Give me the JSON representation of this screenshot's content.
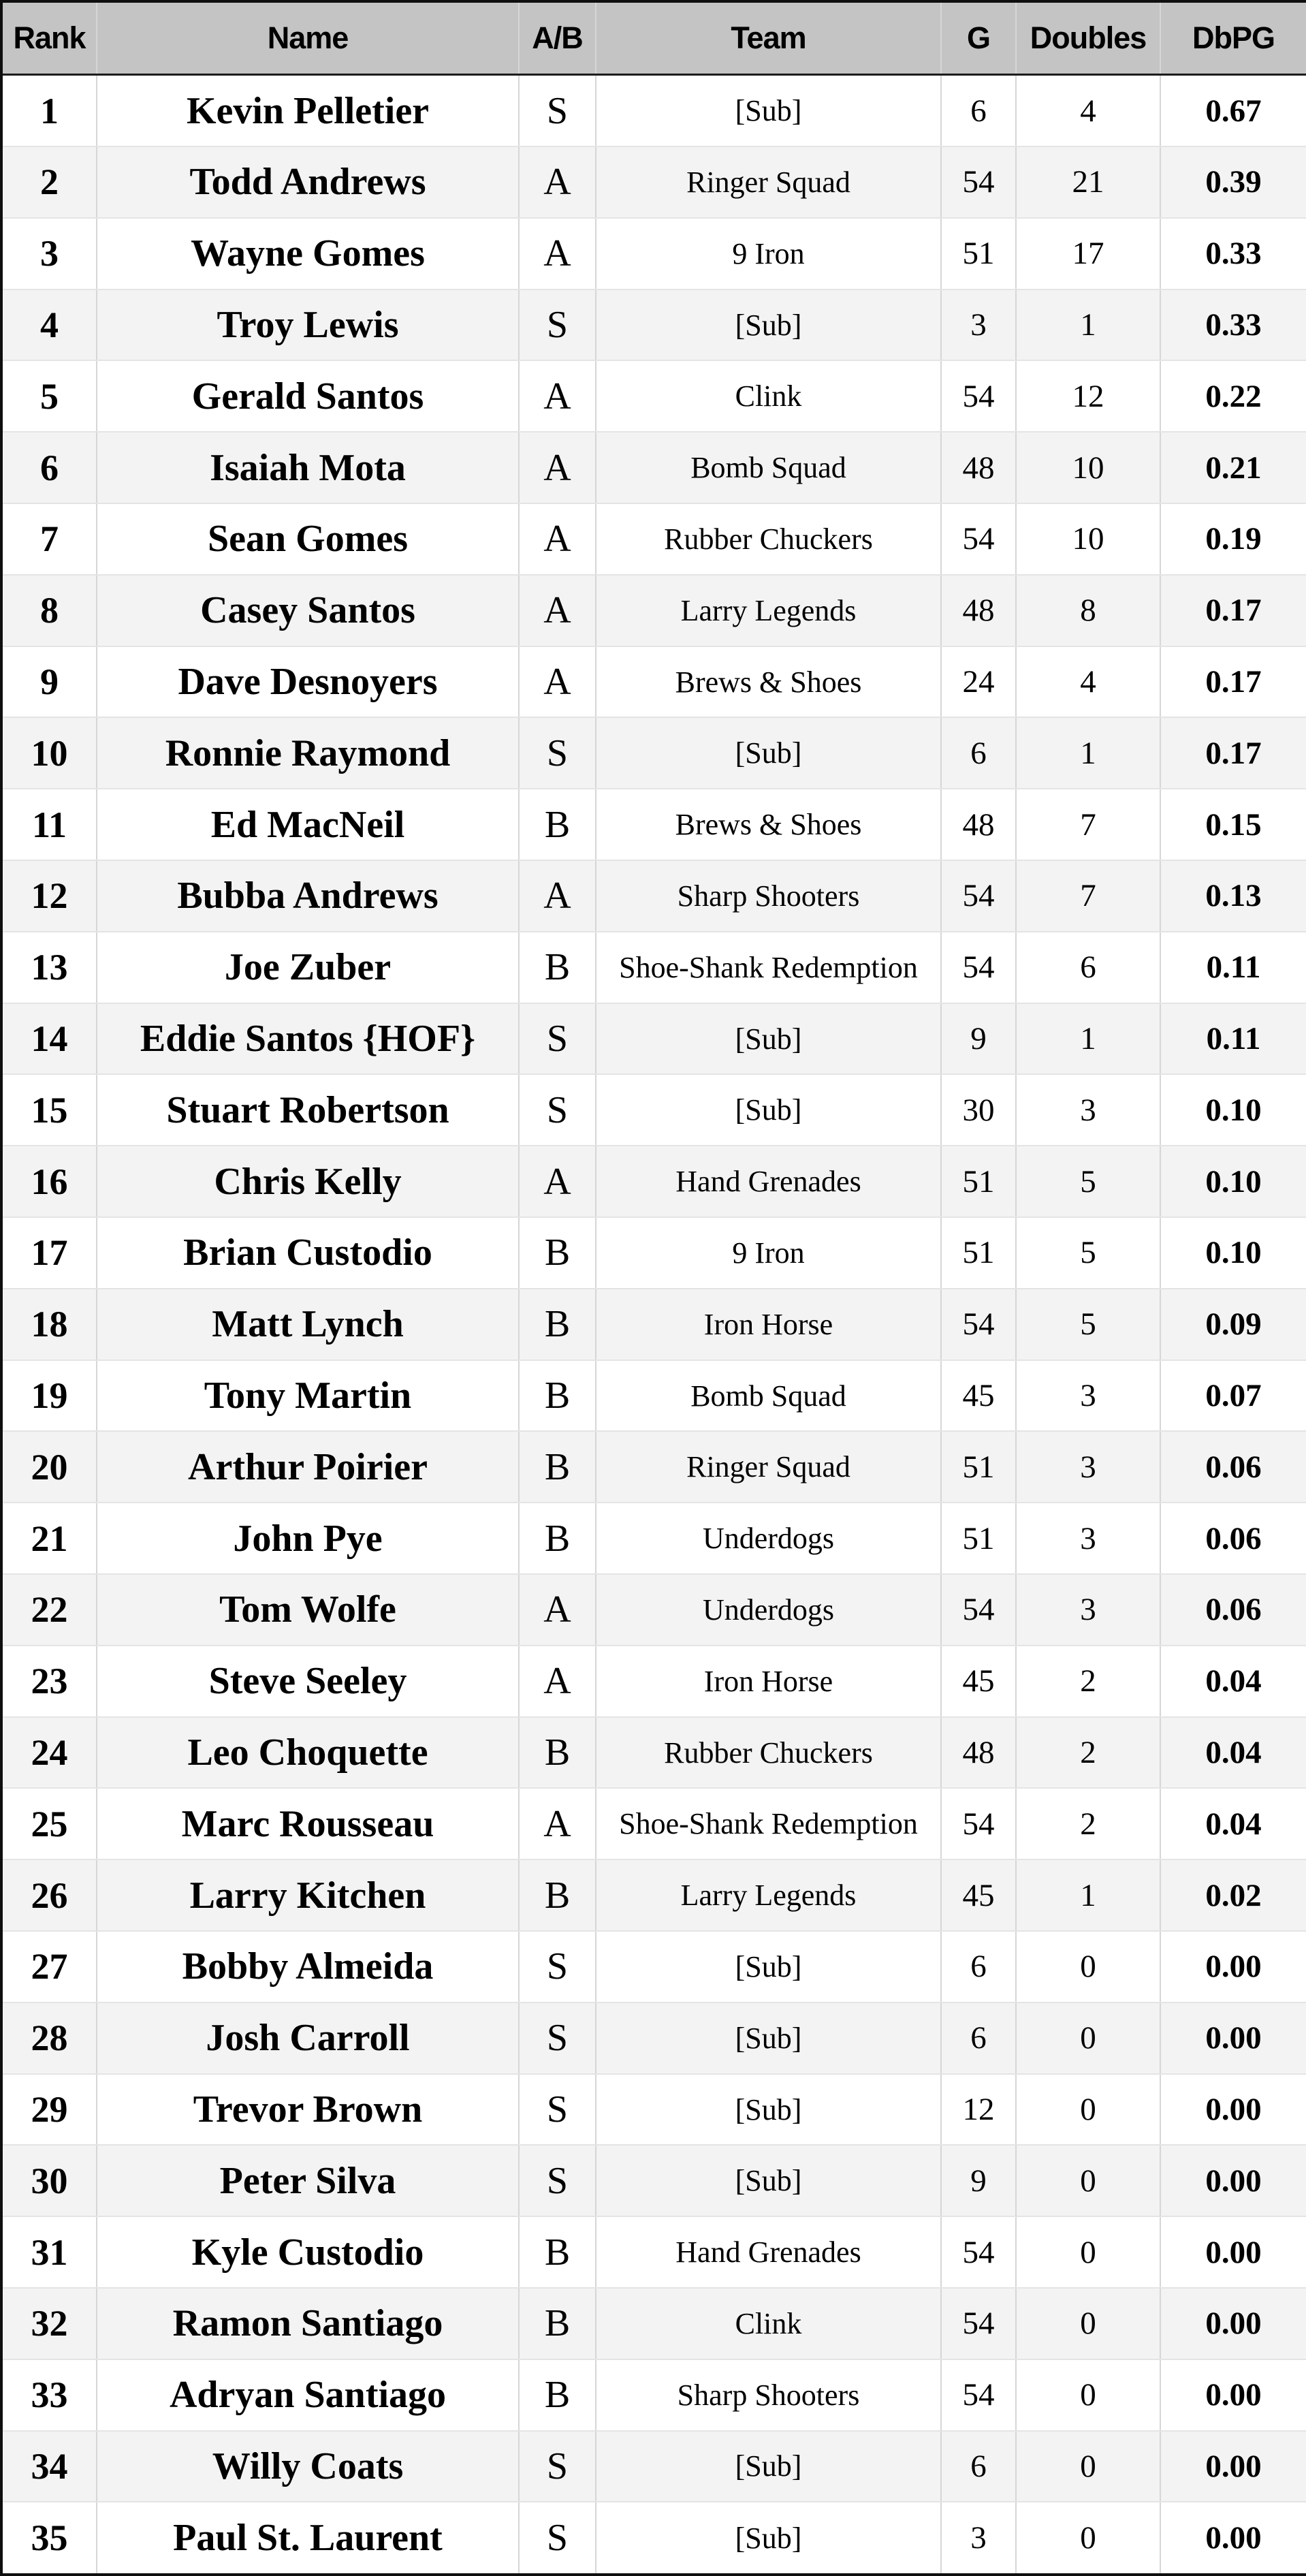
{
  "table": {
    "columns": [
      {
        "key": "rank",
        "label": "Rank"
      },
      {
        "key": "name",
        "label": "Name"
      },
      {
        "key": "ab",
        "label": "A/B"
      },
      {
        "key": "team",
        "label": "Team"
      },
      {
        "key": "g",
        "label": "G"
      },
      {
        "key": "doubles",
        "label": "Doubles"
      },
      {
        "key": "dbpg",
        "label": "DbPG"
      }
    ],
    "rows": [
      {
        "rank": "1",
        "name": "Kevin Pelletier",
        "ab": "S",
        "team": "[Sub]",
        "g": "6",
        "doubles": "4",
        "dbpg": "0.67"
      },
      {
        "rank": "2",
        "name": "Todd Andrews",
        "ab": "A",
        "team": "Ringer Squad",
        "g": "54",
        "doubles": "21",
        "dbpg": "0.39"
      },
      {
        "rank": "3",
        "name": "Wayne Gomes",
        "ab": "A",
        "team": "9 Iron",
        "g": "51",
        "doubles": "17",
        "dbpg": "0.33"
      },
      {
        "rank": "4",
        "name": "Troy Lewis",
        "ab": "S",
        "team": "[Sub]",
        "g": "3",
        "doubles": "1",
        "dbpg": "0.33"
      },
      {
        "rank": "5",
        "name": "Gerald Santos",
        "ab": "A",
        "team": "Clink",
        "g": "54",
        "doubles": "12",
        "dbpg": "0.22"
      },
      {
        "rank": "6",
        "name": "Isaiah Mota",
        "ab": "A",
        "team": "Bomb Squad",
        "g": "48",
        "doubles": "10",
        "dbpg": "0.21"
      },
      {
        "rank": "7",
        "name": "Sean Gomes",
        "ab": "A",
        "team": "Rubber Chuckers",
        "g": "54",
        "doubles": "10",
        "dbpg": "0.19"
      },
      {
        "rank": "8",
        "name": "Casey Santos",
        "ab": "A",
        "team": "Larry Legends",
        "g": "48",
        "doubles": "8",
        "dbpg": "0.17"
      },
      {
        "rank": "9",
        "name": "Dave Desnoyers",
        "ab": "A",
        "team": "Brews & Shoes",
        "g": "24",
        "doubles": "4",
        "dbpg": "0.17"
      },
      {
        "rank": "10",
        "name": "Ronnie Raymond",
        "ab": "S",
        "team": "[Sub]",
        "g": "6",
        "doubles": "1",
        "dbpg": "0.17"
      },
      {
        "rank": "11",
        "name": "Ed MacNeil",
        "ab": "B",
        "team": "Brews & Shoes",
        "g": "48",
        "doubles": "7",
        "dbpg": "0.15"
      },
      {
        "rank": "12",
        "name": "Bubba Andrews",
        "ab": "A",
        "team": "Sharp Shooters",
        "g": "54",
        "doubles": "7",
        "dbpg": "0.13"
      },
      {
        "rank": "13",
        "name": "Joe Zuber",
        "ab": "B",
        "team": "Shoe-Shank Redemption",
        "g": "54",
        "doubles": "6",
        "dbpg": "0.11"
      },
      {
        "rank": "14",
        "name": "Eddie Santos {HOF}",
        "ab": "S",
        "team": "[Sub]",
        "g": "9",
        "doubles": "1",
        "dbpg": "0.11"
      },
      {
        "rank": "15",
        "name": "Stuart Robertson",
        "ab": "S",
        "team": "[Sub]",
        "g": "30",
        "doubles": "3",
        "dbpg": "0.10"
      },
      {
        "rank": "16",
        "name": "Chris Kelly",
        "ab": "A",
        "team": "Hand Grenades",
        "g": "51",
        "doubles": "5",
        "dbpg": "0.10"
      },
      {
        "rank": "17",
        "name": "Brian Custodio",
        "ab": "B",
        "team": "9 Iron",
        "g": "51",
        "doubles": "5",
        "dbpg": "0.10"
      },
      {
        "rank": "18",
        "name": "Matt Lynch",
        "ab": "B",
        "team": "Iron Horse",
        "g": "54",
        "doubles": "5",
        "dbpg": "0.09"
      },
      {
        "rank": "19",
        "name": "Tony Martin",
        "ab": "B",
        "team": "Bomb Squad",
        "g": "45",
        "doubles": "3",
        "dbpg": "0.07"
      },
      {
        "rank": "20",
        "name": "Arthur Poirier",
        "ab": "B",
        "team": "Ringer Squad",
        "g": "51",
        "doubles": "3",
        "dbpg": "0.06"
      },
      {
        "rank": "21",
        "name": "John Pye",
        "ab": "B",
        "team": "Underdogs",
        "g": "51",
        "doubles": "3",
        "dbpg": "0.06"
      },
      {
        "rank": "22",
        "name": "Tom Wolfe",
        "ab": "A",
        "team": "Underdogs",
        "g": "54",
        "doubles": "3",
        "dbpg": "0.06"
      },
      {
        "rank": "23",
        "name": "Steve Seeley",
        "ab": "A",
        "team": "Iron Horse",
        "g": "45",
        "doubles": "2",
        "dbpg": "0.04"
      },
      {
        "rank": "24",
        "name": "Leo Choquette",
        "ab": "B",
        "team": "Rubber Chuckers",
        "g": "48",
        "doubles": "2",
        "dbpg": "0.04"
      },
      {
        "rank": "25",
        "name": "Marc Rousseau",
        "ab": "A",
        "team": "Shoe-Shank Redemption",
        "g": "54",
        "doubles": "2",
        "dbpg": "0.04"
      },
      {
        "rank": "26",
        "name": "Larry Kitchen",
        "ab": "B",
        "team": "Larry Legends",
        "g": "45",
        "doubles": "1",
        "dbpg": "0.02"
      },
      {
        "rank": "27",
        "name": "Bobby Almeida",
        "ab": "S",
        "team": "[Sub]",
        "g": "6",
        "doubles": "0",
        "dbpg": "0.00"
      },
      {
        "rank": "28",
        "name": "Josh Carroll",
        "ab": "S",
        "team": "[Sub]",
        "g": "6",
        "doubles": "0",
        "dbpg": "0.00"
      },
      {
        "rank": "29",
        "name": "Trevor Brown",
        "ab": "S",
        "team": "[Sub]",
        "g": "12",
        "doubles": "0",
        "dbpg": "0.00"
      },
      {
        "rank": "30",
        "name": "Peter Silva",
        "ab": "S",
        "team": "[Sub]",
        "g": "9",
        "doubles": "0",
        "dbpg": "0.00"
      },
      {
        "rank": "31",
        "name": "Kyle Custodio",
        "ab": "B",
        "team": "Hand Grenades",
        "g": "54",
        "doubles": "0",
        "dbpg": "0.00"
      },
      {
        "rank": "32",
        "name": "Ramon Santiago",
        "ab": "B",
        "team": "Clink",
        "g": "54",
        "doubles": "0",
        "dbpg": "0.00"
      },
      {
        "rank": "33",
        "name": "Adryan Santiago",
        "ab": "B",
        "team": "Sharp Shooters",
        "g": "54",
        "doubles": "0",
        "dbpg": "0.00"
      },
      {
        "rank": "34",
        "name": "Willy Coats",
        "ab": "S",
        "team": "[Sub]",
        "g": "6",
        "doubles": "0",
        "dbpg": "0.00"
      },
      {
        "rank": "35",
        "name": "Paul St. Laurent",
        "ab": "S",
        "team": "[Sub]",
        "g": "3",
        "doubles": "0",
        "dbpg": "0.00"
      }
    ]
  },
  "colors": {
    "header_bg": "#c4c4c4",
    "stripe_bg": "#f3f3f3",
    "outer_border": "#0f0f0f",
    "column_line": "#d6d6d6",
    "row_line": "#e4e4e4",
    "text": "#000000"
  }
}
